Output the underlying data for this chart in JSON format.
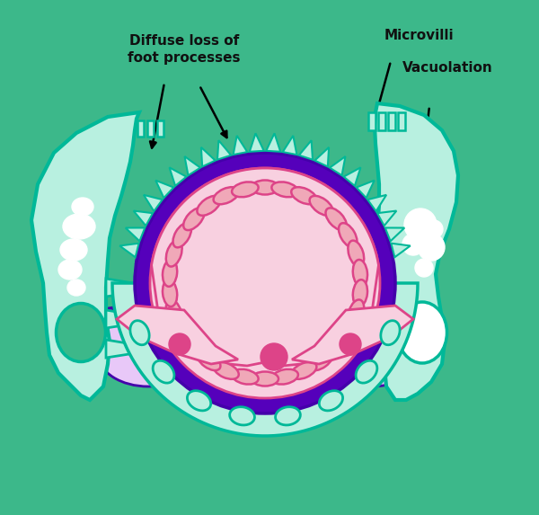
{
  "bg_color": "#3cb88a",
  "light_teal": "#b8f0e0",
  "teal_outline": "#00b898",
  "dark_purple": "#4400aa",
  "purple_ring": "#5500bb",
  "pink_fill": "#f0a8b8",
  "pink_dark": "#dd4488",
  "light_pink": "#f8d0e0",
  "light_purple_fill": "#d8a8ee",
  "lighter_purple": "#e8c8f8",
  "white": "#ffffff",
  "text_color": "#111111",
  "ann1_text": "Diffuse loss of\nfoot processes",
  "ann2_text": "Microvilli",
  "ann3_text": "Vacuolation"
}
